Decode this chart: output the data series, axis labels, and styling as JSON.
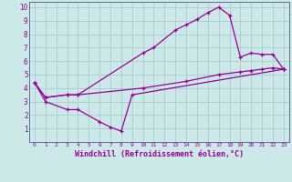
{
  "bg_color": "#cce8e8",
  "grid_color": "#aacccc",
  "line_color": "#990099",
  "spine_color": "#666699",
  "xlim": [
    -0.5,
    23.5
  ],
  "ylim": [
    0,
    10.4
  ],
  "xlabel": "Windchill (Refroidissement éolien,°C)",
  "xticks": [
    0,
    1,
    2,
    3,
    4,
    5,
    6,
    7,
    8,
    9,
    10,
    11,
    12,
    13,
    14,
    15,
    16,
    17,
    18,
    19,
    20,
    21,
    22,
    23
  ],
  "yticks": [
    1,
    2,
    3,
    4,
    5,
    6,
    7,
    8,
    9,
    10
  ],
  "line1": {
    "x": [
      0,
      1,
      3,
      4,
      6,
      7,
      8,
      9,
      23
    ],
    "y": [
      4.4,
      3.0,
      2.4,
      2.4,
      1.5,
      1.1,
      0.8,
      3.5,
      5.4
    ]
  },
  "line2": {
    "x": [
      0,
      1,
      3,
      4,
      10,
      11,
      13,
      14,
      15,
      16,
      17,
      18,
      19,
      20,
      21,
      22,
      23
    ],
    "y": [
      4.4,
      3.3,
      3.5,
      3.5,
      6.6,
      7.0,
      8.3,
      8.7,
      9.1,
      9.6,
      10.0,
      9.4,
      6.3,
      6.6,
      6.5,
      6.5,
      5.4
    ]
  },
  "line3": {
    "x": [
      0,
      1,
      3,
      4,
      10,
      14,
      17,
      19,
      20,
      21,
      22,
      23
    ],
    "y": [
      4.4,
      3.3,
      3.5,
      3.5,
      4.0,
      4.5,
      5.0,
      5.2,
      5.3,
      5.4,
      5.5,
      5.4
    ]
  }
}
